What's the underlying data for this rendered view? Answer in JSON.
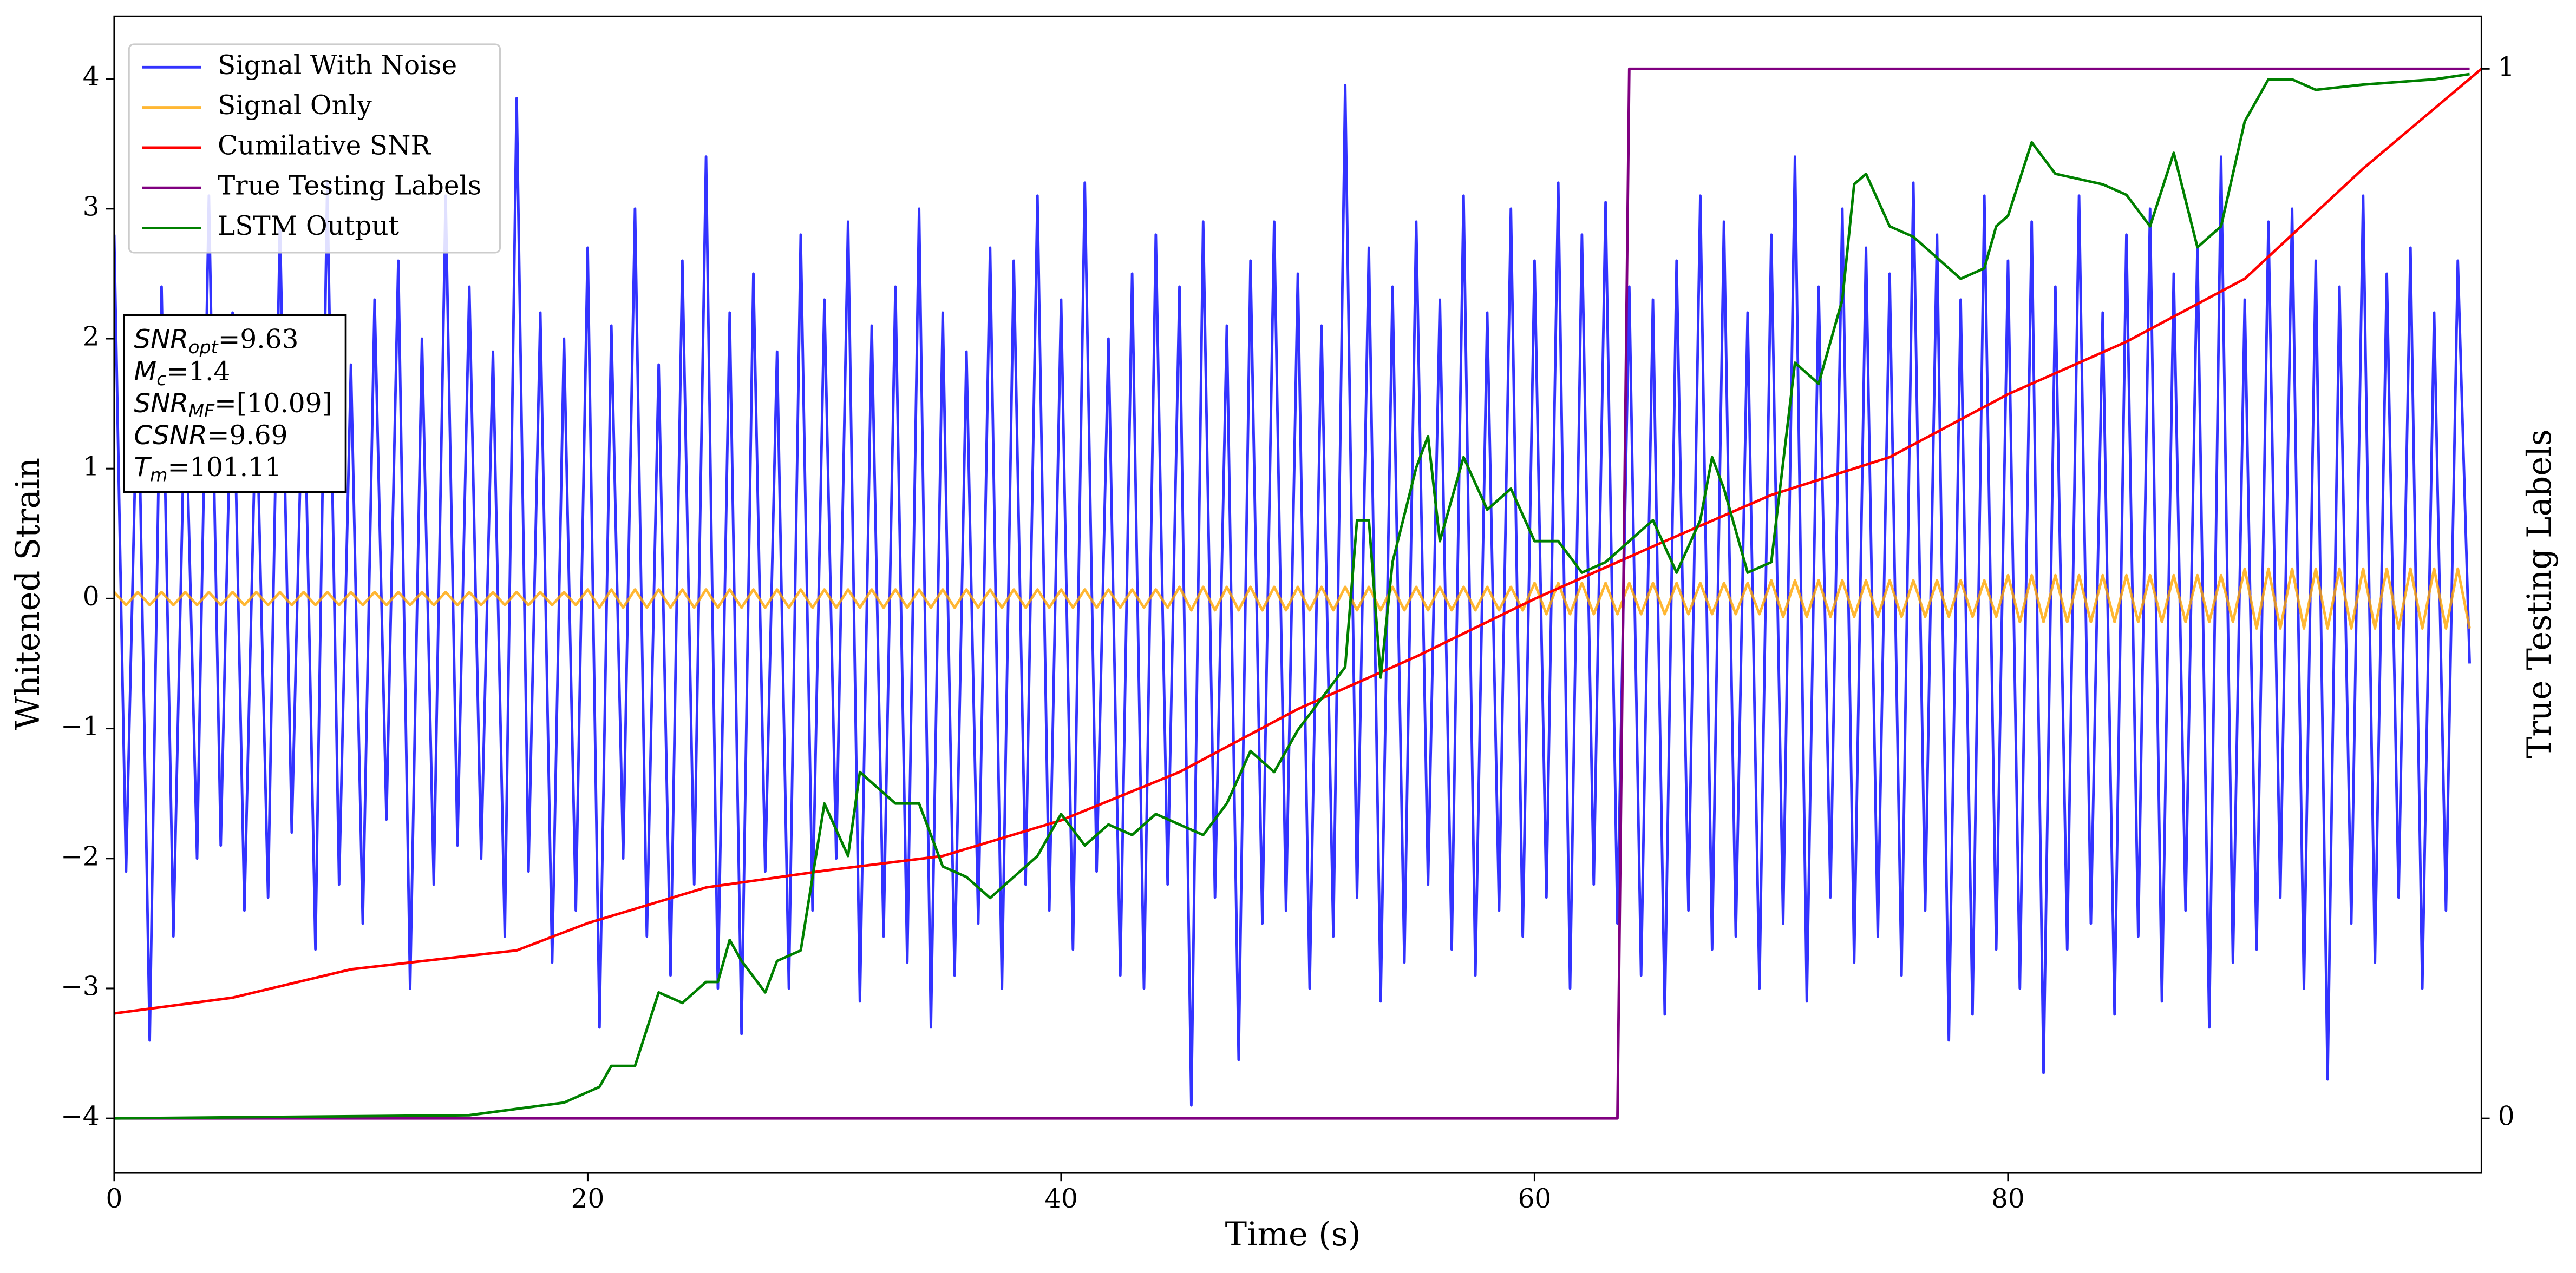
{
  "chart_data": {
    "type": "line",
    "xlabel": "Time (s)",
    "ylabel": "Whitened Strain",
    "y2label": "True Testing Labels",
    "xlim": [
      0,
      100
    ],
    "ylim": [
      -4.42,
      4.48
    ],
    "y2lim": [
      -0.052,
      1.05
    ],
    "xticks": [
      0,
      20,
      40,
      60,
      80
    ],
    "yticks": [
      {
        "value": -4,
        "label": "−4"
      },
      {
        "value": -3,
        "label": "−3"
      },
      {
        "value": -2,
        "label": "−2"
      },
      {
        "value": -1,
        "label": "−1"
      },
      0,
      1,
      2,
      3,
      4
    ],
    "y2ticks": [
      0,
      1
    ],
    "legend": "upper left",
    "x": [
      0,
      0.5,
      1,
      1.5,
      2,
      2.5,
      3,
      3.5,
      4,
      4.5,
      5,
      5.5,
      6,
      6.5,
      7,
      7.5,
      8,
      8.5,
      9,
      9.5,
      10,
      10.5,
      11,
      11.5,
      12,
      12.5,
      13,
      13.5,
      14,
      14.5,
      15,
      15.5,
      16,
      16.5,
      17,
      17.5,
      18,
      18.5,
      19,
      19.5,
      20,
      20.5,
      21,
      21.5,
      22,
      22.5,
      23,
      23.5,
      24,
      24.5,
      25,
      25.5,
      26,
      26.5,
      27,
      27.5,
      28,
      28.5,
      29,
      29.5,
      30,
      30.5,
      31,
      31.5,
      32,
      32.5,
      33,
      33.5,
      34,
      34.5,
      35,
      35.5,
      36,
      36.5,
      37,
      37.5,
      38,
      38.5,
      39,
      39.5,
      40,
      40.5,
      41,
      41.5,
      42,
      42.5,
      43,
      43.5,
      44,
      44.5,
      45,
      45.5,
      46,
      46.5,
      47,
      47.5,
      48,
      48.5,
      49,
      49.5,
      50,
      50.5,
      51,
      51.5,
      52,
      52.5,
      53,
      53.5,
      54,
      54.5,
      55,
      55.5,
      56,
      56.5,
      57,
      57.5,
      58,
      58.5,
      59,
      59.5,
      60,
      60.5,
      61,
      61.5,
      62,
      62.5,
      63,
      63.5,
      64,
      64.5,
      65,
      65.5,
      66,
      66.5,
      67,
      67.5,
      68,
      68.5,
      69,
      69.5,
      70,
      70.5,
      71,
      71.5,
      72,
      72.5,
      73,
      73.5,
      74,
      74.5,
      75,
      75.5,
      76,
      76.5,
      77,
      77.5,
      78,
      78.5,
      79,
      79.5,
      80,
      80.5,
      81,
      81.5,
      82,
      82.5,
      83,
      83.5,
      84,
      84.5,
      85,
      85.5,
      86,
      86.5,
      87,
      87.5,
      88,
      88.5,
      89,
      89.5,
      90,
      90.5,
      91,
      91.5,
      92,
      92.5,
      93,
      93.5,
      94,
      94.5,
      95,
      95.5,
      96,
      96.5,
      97,
      97.5,
      98,
      98.5,
      99,
      99.5
    ],
    "series": [
      {
        "name": "Signal With Noise",
        "color": "#0000ff",
        "alpha": 0.8,
        "values": [
          2.8,
          -2.1,
          1.9,
          -3.4,
          2.4,
          -2.6,
          1.7,
          -2.0,
          3.1,
          -1.9,
          2.2,
          -2.4,
          1.6,
          -2.3,
          2.9,
          -1.8,
          2.0,
          -2.7,
          3.2,
          -2.2,
          1.8,
          -2.5,
          2.3,
          -1.7,
          2.6,
          -3.0,
          2.0,
          -2.2,
          3.1,
          -1.9,
          2.4,
          -2.0,
          1.9,
          -2.6,
          3.85,
          -2.1,
          2.2,
          -2.8,
          2.0,
          -2.4,
          2.7,
          -3.3,
          2.1,
          -2.0,
          3.0,
          -2.6,
          1.8,
          -2.9,
          2.6,
          -2.2,
          3.4,
          -3.0,
          2.2,
          -3.35,
          2.5,
          -2.1,
          1.9,
          -3.0,
          2.8,
          -2.4,
          2.3,
          -2.0,
          2.9,
          -3.1,
          2.1,
          -2.6,
          2.4,
          -2.8,
          3.0,
          -3.3,
          2.2,
          -2.9,
          1.9,
          -2.5,
          2.7,
          -3.0,
          2.6,
          -2.2,
          3.1,
          -2.4,
          2.3,
          -2.7,
          3.2,
          -2.1,
          2.0,
          -2.9,
          2.5,
          -3.0,
          2.8,
          -2.2,
          2.4,
          -3.9,
          2.9,
          -2.3,
          2.1,
          -3.55,
          2.6,
          -2.5,
          2.9,
          -2.4,
          2.5,
          -3.0,
          2.1,
          -2.6,
          3.95,
          -2.3,
          2.7,
          -3.1,
          2.4,
          -2.8,
          2.9,
          -2.2,
          2.3,
          -2.7,
          3.1,
          -2.9,
          2.2,
          -2.4,
          3.0,
          -2.6,
          2.6,
          -2.3,
          3.2,
          -3.0,
          2.8,
          -2.2,
          3.05,
          -2.5,
          2.4,
          -2.9,
          2.3,
          -3.2,
          2.6,
          -2.4,
          3.1,
          -2.7,
          2.9,
          -2.6,
          2.2,
          -3.0,
          2.8,
          -2.5,
          3.4,
          -3.1,
          2.4,
          -2.3,
          3.0,
          -2.8,
          2.7,
          -2.6,
          2.5,
          -2.9,
          3.2,
          -2.4,
          2.8,
          -3.4,
          2.3,
          -3.2,
          3.1,
          -2.7,
          2.6,
          -3.0,
          2.9,
          -3.65,
          2.4,
          -2.7,
          3.1,
          -2.5,
          2.2,
          -3.2,
          2.8,
          -2.6,
          3.0,
          -3.1,
          2.5,
          -2.4,
          2.7,
          -3.3,
          3.4,
          -2.8,
          2.3,
          -2.7,
          2.9,
          -2.3,
          3.0,
          -3.0,
          2.6,
          -3.7,
          2.4,
          -2.5,
          3.1,
          -2.8,
          2.5,
          -2.3,
          2.7,
          -3.0,
          2.2,
          -2.4,
          2.6,
          -0.5
        ]
      },
      {
        "name": "Signal Only",
        "color": "#ffa500",
        "alpha": 0.8,
        "values": [
          0.05,
          -0.05,
          0.05,
          -0.05,
          0.05,
          -0.05,
          0.05,
          -0.05,
          0.05,
          -0.05,
          0.05,
          -0.05,
          0.05,
          -0.05,
          0.05,
          -0.05,
          0.05,
          -0.05,
          0.05,
          -0.05,
          0.05,
          -0.05,
          0.05,
          -0.05,
          0.05,
          -0.05,
          0.05,
          -0.05,
          0.05,
          -0.05,
          0.05,
          -0.05,
          0.05,
          -0.05,
          0.05,
          -0.05,
          0.05,
          -0.05,
          0.05,
          -0.05,
          0.07,
          -0.07,
          0.07,
          -0.07,
          0.07,
          -0.07,
          0.07,
          -0.07,
          0.07,
          -0.07,
          0.07,
          -0.07,
          0.07,
          -0.07,
          0.07,
          -0.07,
          0.07,
          -0.07,
          0.07,
          -0.07,
          0.07,
          -0.07,
          0.07,
          -0.07,
          0.07,
          -0.07,
          0.07,
          -0.07,
          0.07,
          -0.07,
          0.07,
          -0.07,
          0.07,
          -0.07,
          0.07,
          -0.07,
          0.07,
          -0.07,
          0.07,
          -0.07,
          0.07,
          -0.07,
          0.07,
          -0.07,
          0.07,
          -0.07,
          0.07,
          -0.07,
          0.07,
          -0.07,
          0.09,
          -0.09,
          0.09,
          -0.09,
          0.09,
          -0.09,
          0.09,
          -0.09,
          0.09,
          -0.09,
          0.09,
          -0.09,
          0.09,
          -0.09,
          0.09,
          -0.09,
          0.09,
          -0.09,
          0.09,
          -0.09,
          0.09,
          -0.09,
          0.09,
          -0.09,
          0.09,
          -0.09,
          0.09,
          -0.09,
          0.09,
          -0.09,
          0.12,
          -0.12,
          0.12,
          -0.12,
          0.12,
          -0.12,
          0.12,
          -0.12,
          0.12,
          -0.12,
          0.12,
          -0.12,
          0.12,
          -0.12,
          0.12,
          -0.12,
          0.12,
          -0.12,
          0.12,
          -0.12,
          0.14,
          -0.14,
          0.14,
          -0.14,
          0.14,
          -0.14,
          0.14,
          -0.14,
          0.14,
          -0.14,
          0.14,
          -0.14,
          0.14,
          -0.14,
          0.14,
          -0.14,
          0.14,
          -0.14,
          0.14,
          -0.14,
          0.18,
          -0.18,
          0.18,
          -0.18,
          0.18,
          -0.18,
          0.18,
          -0.18,
          0.18,
          -0.18,
          0.18,
          -0.18,
          0.18,
          -0.18,
          0.18,
          -0.18,
          0.18,
          -0.18,
          0.18,
          -0.18,
          0.23,
          -0.23,
          0.23,
          -0.23,
          0.23,
          -0.23,
          0.23,
          -0.23,
          0.23,
          -0.23,
          0.23,
          -0.23,
          0.23,
          -0.23,
          0.23,
          -0.23,
          0.23,
          -0.23,
          0.23,
          -0.23
        ]
      },
      {
        "name": "Cumilative SNR",
        "color": "#ff0000",
        "axis": "y2",
        "x": [
          0,
          5,
          10,
          15,
          17,
          20,
          25,
          30,
          35,
          40,
          45,
          50,
          55,
          60,
          65,
          70,
          75,
          80,
          85,
          90,
          95,
          100
        ],
        "values": [
          0.1,
          0.115,
          0.142,
          0.155,
          0.16,
          0.186,
          0.22,
          0.236,
          0.25,
          0.284,
          0.33,
          0.39,
          0.44,
          0.495,
          0.545,
          0.594,
          0.63,
          0.69,
          0.74,
          0.8,
          0.905,
          1.0
        ]
      },
      {
        "name": "True Testing Labels",
        "color": "#800080",
        "axis": "y2",
        "x": [
          0,
          63.5,
          64,
          99.5
        ],
        "values": [
          0,
          0,
          1,
          1
        ]
      },
      {
        "name": "LSTM Output",
        "color": "#008000",
        "axis": "y2",
        "x": [
          0,
          15,
          19,
          20.5,
          21,
          22,
          23,
          24,
          25,
          25.5,
          26,
          26.5,
          27.5,
          28,
          29,
          30,
          31,
          31.5,
          32,
          33,
          34,
          35,
          36,
          37,
          38,
          39,
          40,
          41,
          42,
          43,
          44,
          45,
          46,
          47,
          48,
          49,
          50,
          51,
          52,
          52.5,
          53,
          53.5,
          54,
          55,
          55.5,
          56,
          57,
          58,
          59,
          60,
          61,
          62,
          63,
          64,
          65,
          66,
          67,
          67.5,
          68,
          69,
          70,
          71,
          72,
          73,
          73.5,
          74,
          75,
          76,
          77,
          78,
          79,
          79.5,
          80,
          81,
          82,
          84,
          85,
          86,
          87,
          88,
          89,
          90,
          91,
          92,
          93,
          95,
          98,
          99.5
        ],
        "values": [
          0,
          0.003,
          0.015,
          0.03,
          0.05,
          0.05,
          0.12,
          0.11,
          0.13,
          0.13,
          0.17,
          0.15,
          0.12,
          0.15,
          0.16,
          0.3,
          0.25,
          0.33,
          0.32,
          0.3,
          0.3,
          0.24,
          0.23,
          0.21,
          0.23,
          0.25,
          0.29,
          0.26,
          0.28,
          0.27,
          0.29,
          0.28,
          0.27,
          0.3,
          0.35,
          0.33,
          0.37,
          0.4,
          0.43,
          0.57,
          0.57,
          0.42,
          0.53,
          0.62,
          0.65,
          0.55,
          0.63,
          0.58,
          0.6,
          0.55,
          0.55,
          0.52,
          0.53,
          0.55,
          0.57,
          0.52,
          0.57,
          0.63,
          0.6,
          0.52,
          0.53,
          0.72,
          0.7,
          0.78,
          0.89,
          0.9,
          0.85,
          0.84,
          0.82,
          0.8,
          0.81,
          0.85,
          0.86,
          0.93,
          0.9,
          0.89,
          0.88,
          0.85,
          0.92,
          0.83,
          0.85,
          0.95,
          0.99,
          0.99,
          0.98,
          0.985,
          0.99,
          0.995
        ]
      }
    ],
    "annotation": [
      {
        "var": "SNR",
        "sub": "opt",
        "text": "=9.63"
      },
      {
        "var": "M",
        "sub": "c",
        "text": "=1.4"
      },
      {
        "var": "SNR",
        "sub": "MF",
        "text": "=[10.09]"
      },
      {
        "var": "CSNR",
        "text": "=9.69"
      },
      {
        "var": "T",
        "sub": "m",
        "text": "=101.11"
      }
    ]
  }
}
